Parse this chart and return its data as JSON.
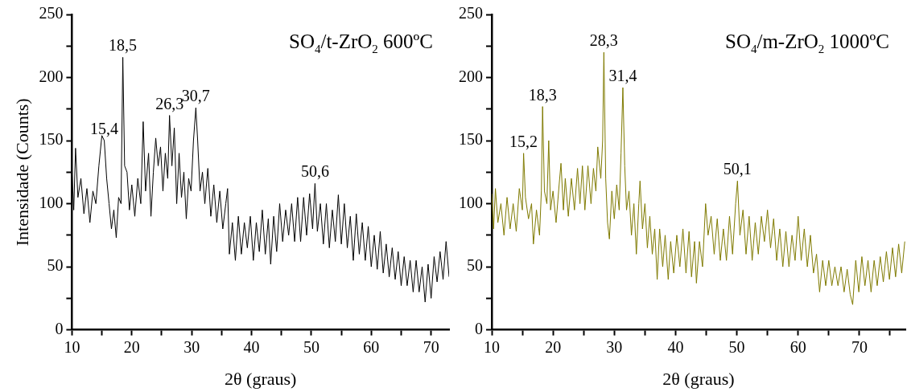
{
  "chart_data": [
    {
      "type": "line",
      "title": "SO$_{4}$/t-ZrO$_{2}$ 600ºC",
      "xlabel": "2θ (graus)",
      "ylabel": "Intensidade (Counts)",
      "xlim": [
        10,
        73
      ],
      "ylim": [
        0,
        250
      ],
      "xticks": [
        10,
        {
          "value": 15,
          "label": null
        },
        20,
        {
          "value": 25,
          "label": null
        },
        30,
        {
          "value": 35,
          "label": null
        },
        40,
        {
          "value": 45,
          "label": null
        },
        50,
        {
          "value": 55,
          "label": null
        },
        60,
        {
          "value": 65,
          "label": null
        },
        70
      ],
      "yticks": [
        0,
        {
          "value": 25,
          "label": null
        },
        50,
        {
          "value": 75,
          "label": null
        },
        100,
        {
          "value": 125,
          "label": null
        },
        150,
        {
          "value": 175,
          "label": null
        },
        200,
        {
          "value": 225,
          "label": null
        },
        250
      ],
      "grid": false,
      "legend": false,
      "marker": "none",
      "series": [
        {
          "color": "#000000",
          "x": [
            10,
            10.3,
            10.6,
            11,
            11.5,
            12,
            12.5,
            13,
            13.5,
            14,
            14.5,
            15,
            15.4,
            15.8,
            16.2,
            16.6,
            17,
            17.4,
            17.8,
            18.2,
            18.5,
            18.8,
            19.2,
            19.6,
            20,
            20.5,
            21,
            21.5,
            21.9,
            22.3,
            22.8,
            23.2,
            23.6,
            24,
            24.4,
            24.8,
            25.2,
            25.6,
            26,
            26.3,
            26.7,
            27.1,
            27.5,
            27.9,
            28.3,
            28.7,
            29.1,
            29.5,
            29.9,
            30.3,
            30.7,
            31,
            31.4,
            31.8,
            32.2,
            32.7,
            33.2,
            33.7,
            34.2,
            34.7,
            35.2,
            35.7,
            36,
            36.3,
            36.8,
            37.3,
            37.8,
            38.3,
            38.8,
            39.3,
            39.8,
            40.3,
            40.8,
            41.3,
            41.8,
            42.3,
            42.8,
            43.2,
            43.7,
            44.2,
            44.7,
            45.2,
            45.7,
            46.2,
            46.7,
            47.2,
            47.7,
            48.2,
            48.7,
            49.2,
            49.7,
            50.2,
            50.6,
            51,
            51.5,
            52,
            52.5,
            53,
            53.5,
            54,
            54.5,
            55,
            55.5,
            56,
            56.5,
            57,
            57.5,
            58,
            58.5,
            59,
            59.5,
            60,
            60.5,
            61,
            61.5,
            62,
            62.5,
            63,
            63.5,
            64,
            64.5,
            65,
            65.5,
            66,
            66.5,
            67,
            67.5,
            68,
            68.5,
            69,
            69.5,
            70,
            70.5,
            71,
            71.5,
            72,
            72.5,
            73
          ],
          "values": [
            125,
            95,
            144,
            105,
            120,
            92,
            112,
            85,
            110,
            100,
            130,
            154,
            150,
            120,
            100,
            80,
            95,
            73,
            105,
            100,
            216,
            130,
            125,
            95,
            115,
            90,
            120,
            100,
            165,
            110,
            140,
            90,
            125,
            152,
            130,
            145,
            110,
            140,
            120,
            170,
            130,
            160,
            100,
            140,
            105,
            125,
            88,
            120,
            110,
            150,
            176,
            150,
            110,
            125,
            100,
            128,
            90,
            115,
            85,
            110,
            80,
            100,
            112,
            60,
            85,
            55,
            90,
            60,
            85,
            65,
            90,
            55,
            85,
            62,
            95,
            60,
            88,
            52,
            90,
            62,
            100,
            70,
            95,
            75,
            100,
            70,
            105,
            70,
            105,
            75,
            108,
            80,
            116,
            78,
            100,
            68,
            100,
            65,
            95,
            70,
            107,
            68,
            100,
            65,
            90,
            55,
            92,
            60,
            85,
            55,
            82,
            50,
            75,
            48,
            78,
            45,
            68,
            42,
            65,
            40,
            62,
            35,
            58,
            35,
            55,
            30,
            55,
            30,
            50,
            22,
            52,
            25,
            58,
            38,
            62,
            40,
            70,
            42
          ]
        }
      ],
      "annotations": [
        {
          "text": "15,4",
          "x": 15.4,
          "y": 150
        },
        {
          "text": "18,5",
          "x": 18.5,
          "y": 216
        },
        {
          "text": "26,3",
          "x": 26.3,
          "y": 170
        },
        {
          "text": "30,7",
          "x": 30.7,
          "y": 176
        },
        {
          "text": "50,6",
          "x": 50.6,
          "y": 116
        }
      ]
    },
    {
      "type": "line",
      "title": "SO$_{4}$/m-ZrO$_{2}$ 1000ºC",
      "xlabel": "2θ (graus)",
      "xlim": [
        10,
        77.5
      ],
      "ylim": [
        0,
        250
      ],
      "xticks": [
        10,
        {
          "value": 15,
          "label": null
        },
        20,
        {
          "value": 25,
          "label": null
        },
        30,
        {
          "value": 35,
          "label": null
        },
        40,
        {
          "value": 45,
          "label": null
        },
        50,
        {
          "value": 55,
          "label": null
        },
        60,
        {
          "value": 65,
          "label": null
        },
        70,
        {
          "value": 75,
          "label": null
        }
      ],
      "yticks": [
        0,
        {
          "value": 25,
          "label": null
        },
        50,
        {
          "value": 75,
          "label": null
        },
        100,
        {
          "value": 125,
          "label": null
        },
        150,
        {
          "value": 175,
          "label": null
        },
        200,
        {
          "value": 225,
          "label": null
        },
        250
      ],
      "grid": false,
      "legend": false,
      "marker": "none",
      "series": [
        {
          "color": "#7f7a00",
          "x": [
            10,
            10.3,
            10.6,
            11,
            11.5,
            12,
            12.5,
            13,
            13.5,
            14,
            14.5,
            15,
            15.2,
            15.5,
            16,
            16.5,
            16.8,
            17.3,
            17.8,
            18.1,
            18.3,
            18.6,
            19,
            19.3,
            19.6,
            20,
            20.5,
            21,
            21.3,
            21.7,
            22,
            22.5,
            23,
            23.5,
            24,
            24.4,
            24.8,
            25.2,
            25.7,
            26.2,
            26.6,
            27,
            27.3,
            27.8,
            28.1,
            28.3,
            28.6,
            28.9,
            29.2,
            29.6,
            30,
            30.4,
            30.8,
            31.1,
            31.4,
            31.7,
            32,
            32.4,
            32.8,
            33.2,
            33.6,
            34,
            34.2,
            34.6,
            35,
            35.4,
            35.8,
            36.2,
            36.6,
            37,
            37.4,
            37.9,
            38.3,
            38.8,
            39.2,
            39.7,
            40.2,
            40.7,
            41.2,
            41.7,
            42.2,
            42.6,
            43.1,
            43.4,
            43.9,
            44.4,
            44.9,
            45.3,
            45.8,
            46.3,
            46.8,
            47.3,
            47.8,
            48.3,
            48.8,
            49.3,
            49.8,
            50.1,
            50.5,
            51,
            51.5,
            52,
            52.5,
            53,
            53.5,
            54,
            54.5,
            55,
            55.5,
            56,
            56.5,
            57,
            57.5,
            58,
            58.5,
            59,
            59.5,
            60,
            60.5,
            61,
            61.5,
            62,
            62.5,
            63,
            63.5,
            64,
            64.5,
            65,
            65.5,
            66,
            66.5,
            67,
            67.5,
            68,
            68.5,
            68.9,
            69.4,
            69.9,
            70.4,
            70.9,
            71.4,
            71.9,
            72.4,
            72.9,
            73.4,
            73.9,
            74.4,
            74.9,
            75.4,
            75.9,
            76.4,
            76.9,
            77.4
          ],
          "values": [
            108,
            80,
            112,
            85,
            100,
            75,
            105,
            80,
            100,
            78,
            112,
            95,
            140,
            105,
            88,
            100,
            68,
            95,
            75,
            110,
            177,
            110,
            100,
            150,
            95,
            110,
            85,
            115,
            132,
            95,
            120,
            90,
            120,
            95,
            128,
            100,
            130,
            95,
            130,
            100,
            128,
            110,
            145,
            120,
            150,
            220,
            120,
            85,
            72,
            110,
            88,
            115,
            95,
            140,
            192,
            130,
            95,
            110,
            75,
            100,
            60,
            100,
            118,
            80,
            100,
            65,
            90,
            60,
            80,
            40,
            80,
            50,
            75,
            40,
            70,
            45,
            75,
            50,
            80,
            45,
            78,
            42,
            70,
            37,
            70,
            50,
            100,
            75,
            90,
            60,
            88,
            55,
            80,
            55,
            90,
            60,
            100,
            118,
            75,
            95,
            60,
            90,
            55,
            85,
            60,
            90,
            70,
            95,
            65,
            88,
            55,
            80,
            50,
            78,
            50,
            75,
            55,
            90,
            55,
            80,
            50,
            75,
            45,
            60,
            30,
            55,
            35,
            55,
            35,
            50,
            35,
            50,
            30,
            48,
            28,
            20,
            55,
            30,
            58,
            35,
            55,
            30,
            55,
            35,
            58,
            38,
            62,
            40,
            65,
            42,
            68,
            45,
            70
          ]
        }
      ],
      "annotations": [
        {
          "text": "15,2",
          "x": 15.2,
          "y": 140
        },
        {
          "text": "18,3",
          "x": 18.3,
          "y": 177
        },
        {
          "text": "28,3",
          "x": 28.3,
          "y": 220
        },
        {
          "text": "31,4",
          "x": 31.4,
          "y": 192
        },
        {
          "text": "50,1",
          "x": 50.1,
          "y": 118
        }
      ]
    }
  ]
}
